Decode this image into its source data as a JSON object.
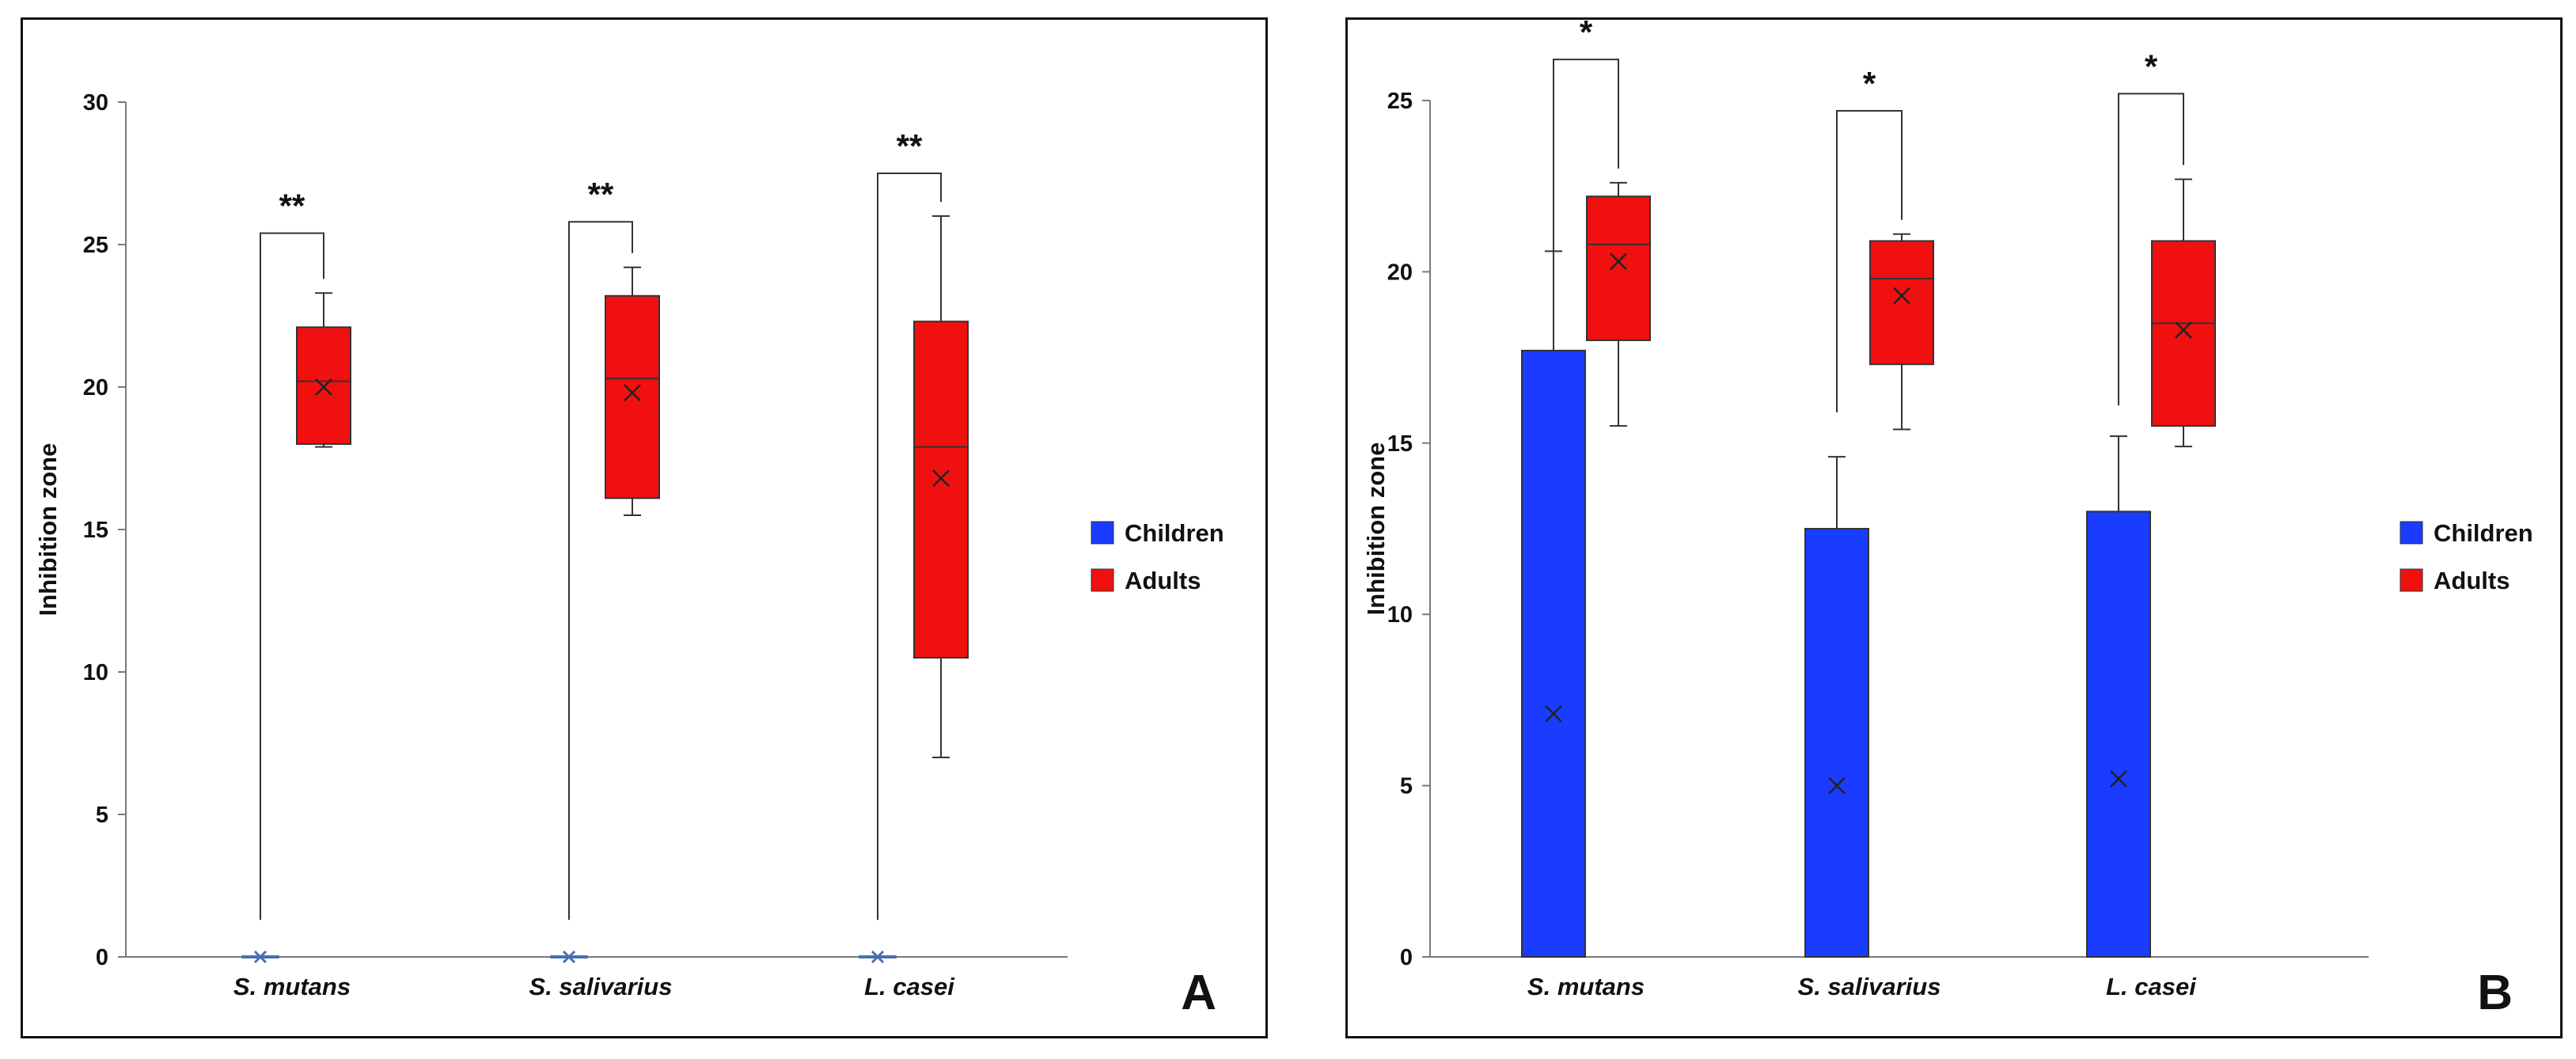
{
  "chart_data": [
    {
      "panel": "A",
      "type": "box",
      "ylabel": "Inhibition zone",
      "ylim": [
        0,
        30
      ],
      "yticks": [
        0,
        5,
        10,
        15,
        20,
        25,
        30
      ],
      "categories": [
        "S. mutans",
        "S. salivarius",
        "L. casei"
      ],
      "legend": [
        "Children",
        "Adults"
      ],
      "legend_position": "right",
      "colors": {
        "Children": "#1a3cff",
        "Adults": "#f01010"
      },
      "series": [
        {
          "name": "Children",
          "boxes": [
            {
              "min": 0,
              "q1": 0,
              "median": 0,
              "q3": 0,
              "max": 0,
              "mean": 0
            },
            {
              "min": 0,
              "q1": 0,
              "median": 0,
              "q3": 0,
              "max": 0,
              "mean": 0
            },
            {
              "min": 0,
              "q1": 0,
              "median": 0,
              "q3": 0,
              "max": 0,
              "mean": 0
            }
          ]
        },
        {
          "name": "Adults",
          "boxes": [
            {
              "min": 17.9,
              "q1": 18.0,
              "median": 20.2,
              "q3": 22.1,
              "max": 23.3,
              "mean": 20.0
            },
            {
              "min": 15.5,
              "q1": 16.1,
              "median": 20.3,
              "q3": 23.2,
              "max": 24.2,
              "mean": 19.8
            },
            {
              "min": 7.0,
              "q1": 10.5,
              "median": 17.9,
              "q3": 22.3,
              "max": 26.0,
              "mean": 16.8
            }
          ]
        }
      ],
      "significance": [
        {
          "label": "**",
          "bracket_top": 25.4,
          "left_start": 1.3
        },
        {
          "label": "**",
          "bracket_top": 25.8,
          "left_start": 1.3
        },
        {
          "label": "**",
          "bracket_top": 27.5,
          "left_start": 1.3
        }
      ]
    },
    {
      "panel": "B",
      "type": "box",
      "ylabel": "Inhibition zone",
      "ylim": [
        0,
        25
      ],
      "yticks": [
        0,
        5,
        10,
        15,
        20,
        25
      ],
      "categories": [
        "S. mutans",
        "S. salivarius",
        "L. casei"
      ],
      "legend": [
        "Children",
        "Adults"
      ],
      "legend_position": "right",
      "colors": {
        "Children": "#1a3cff",
        "Adults": "#f01010"
      },
      "series": [
        {
          "name": "Children",
          "boxes": [
            {
              "min": 0,
              "q1": 0,
              "median": 0,
              "q3": 17.7,
              "max": 20.6,
              "mean": 7.1
            },
            {
              "min": 0,
              "q1": 0,
              "median": 0,
              "q3": 12.5,
              "max": 14.6,
              "mean": 5.0
            },
            {
              "min": 0,
              "q1": 0,
              "median": 0,
              "q3": 13.0,
              "max": 15.2,
              "mean": 5.2
            }
          ]
        },
        {
          "name": "Adults",
          "boxes": [
            {
              "min": 15.5,
              "q1": 18.0,
              "median": 20.8,
              "q3": 22.2,
              "max": 22.6,
              "mean": 20.3
            },
            {
              "min": 15.4,
              "q1": 17.3,
              "median": 19.8,
              "q3": 20.9,
              "max": 21.1,
              "mean": 19.3
            },
            {
              "min": 14.9,
              "q1": 15.5,
              "median": 18.5,
              "q3": 20.9,
              "max": 22.7,
              "mean": 18.3
            }
          ]
        }
      ],
      "significance": [
        {
          "label": "*",
          "bracket_top": 26.2,
          "left_start": 20.6
        },
        {
          "label": "*",
          "bracket_top": 24.7,
          "left_start": 15.9
        },
        {
          "label": "*",
          "bracket_top": 25.2,
          "left_start": 16.1
        }
      ]
    }
  ]
}
